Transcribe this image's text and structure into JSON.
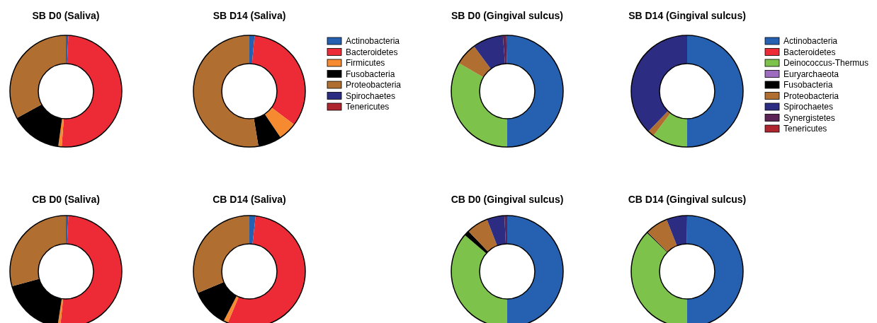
{
  "chart_data": [
    {
      "type": "donut",
      "title": "SB D0 (Saliva)",
      "categories": [
        null,
        null,
        null,
        null,
        null,
        null,
        null
      ],
      "values": [
        0.7,
        50.5,
        1,
        14.8,
        33,
        0,
        0
      ],
      "colors": [
        "#2561b0",
        "#ed2b36",
        "#f58a30",
        "#000000",
        "#b06f31",
        "#2c2d82",
        "#b0262f"
      ],
      "legend": false
    },
    {
      "type": "donut",
      "title": "SB D14 (Saliva)",
      "categories": [
        "Actinobacteria",
        "Bacteroidetes",
        "Firmicutes",
        "Fusobacteria",
        "Proteobacteria",
        "Spirochaetes",
        "Tenericutes"
      ],
      "values": [
        1.5,
        33.7,
        5.4,
        6.8,
        52.6,
        0,
        0
      ],
      "colors": [
        "#2561b0",
        "#ed2b36",
        "#f58a30",
        "#000000",
        "#b06f31",
        "#2c2d82",
        "#b0262f"
      ],
      "legend": "right"
    },
    {
      "type": "donut",
      "title": "SB D0 (Gingival sulcus)",
      "categories": [
        null,
        null,
        null,
        null,
        null,
        null,
        null,
        null,
        null
      ],
      "values": [
        50,
        0,
        33.4,
        0,
        0,
        6.5,
        8.85,
        1,
        0.25
      ],
      "colors": [
        "#2561b0",
        "#ed2b36",
        "#7dc24b",
        "#9e6cbf",
        "#000000",
        "#b06f31",
        "#2c2d82",
        "#5c2355",
        "#b0262f"
      ],
      "legend": false
    },
    {
      "type": "donut",
      "title": "SB D14 (Gingival sulcus)",
      "categories": [
        "Actinobacteria",
        "Bacteroidetes",
        "Deinococcus-Thermus",
        "Euryarchaeota",
        "Fusobacteria",
        "Proteobacteria",
        "Spirochaetes",
        "Synergistetes",
        "Tenericutes"
      ],
      "values": [
        50,
        0,
        10.3,
        0,
        0,
        1.9,
        37.8,
        0,
        0
      ],
      "colors": [
        "#2561b0",
        "#ed2b36",
        "#7dc24b",
        "#9e6cbf",
        "#000000",
        "#b06f31",
        "#2c2d82",
        "#5c2355",
        "#b0262f"
      ],
      "legend": "right"
    },
    {
      "type": "donut",
      "title": "CB D0 (Saliva)",
      "categories": [
        null,
        null,
        null,
        null,
        null,
        null,
        null
      ],
      "values": [
        0.7,
        50.9,
        0.8,
        18.3,
        29.3,
        0,
        0
      ],
      "colors": [
        "#2561b0",
        "#ed2b36",
        "#f58a30",
        "#000000",
        "#b06f31",
        "#2c2d82",
        "#b0262f"
      ],
      "legend": false
    },
    {
      "type": "donut",
      "title": "CB D14 (Saliva)",
      "categories": [
        null,
        null,
        null,
        null,
        null,
        null,
        null
      ],
      "values": [
        1.8,
        54.5,
        1.3,
        11.1,
        31.3,
        0,
        0
      ],
      "colors": [
        "#2561b0",
        "#ed2b36",
        "#f58a30",
        "#000000",
        "#b06f31",
        "#2c2d82",
        "#b0262f"
      ],
      "legend": false
    },
    {
      "type": "donut",
      "title": "CB D0 (Gingival sulcus)",
      "categories": [
        null,
        null,
        null,
        null,
        null,
        null,
        null,
        null,
        null
      ],
      "values": [
        50,
        0,
        36.3,
        0,
        1.5,
        6.3,
        5.1,
        0.8,
        0
      ],
      "colors": [
        "#2561b0",
        "#ed2b36",
        "#7dc24b",
        "#9e6cbf",
        "#000000",
        "#b06f31",
        "#2c2d82",
        "#5c2355",
        "#b0262f"
      ],
      "legend": false
    },
    {
      "type": "donut",
      "title": "CB D14 (Gingival sulcus)",
      "categories": [
        null,
        null,
        null,
        null,
        null,
        null,
        null,
        null,
        null
      ],
      "values": [
        50,
        0,
        37.2,
        0,
        0.3,
        6.5,
        5.8,
        0.2,
        0
      ],
      "colors": [
        "#2561b0",
        "#ed2b36",
        "#7dc24b",
        "#9e6cbf",
        "#000000",
        "#b06f31",
        "#2c2d82",
        "#5c2355",
        "#b0262f"
      ],
      "legend": false
    }
  ]
}
